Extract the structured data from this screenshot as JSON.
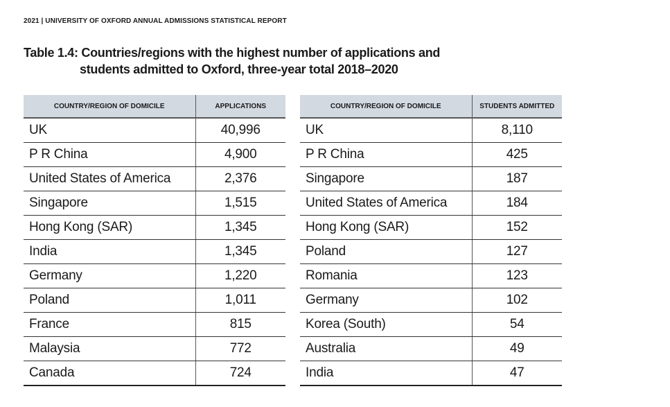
{
  "header": {
    "text": "2021 | UNIVERSITY OF OXFORD ANNUAL ADMISSIONS STATISTICAL REPORT"
  },
  "title": {
    "line1": "Table 1.4: Countries/regions with the highest number of applications and",
    "line2": "students admitted to Oxford, three-year total 2018–2020"
  },
  "applications_table": {
    "col_country": "COUNTRY/REGION OF DOMICILE",
    "col_value": "APPLICATIONS",
    "rows": [
      {
        "country": "UK",
        "value": "40,996"
      },
      {
        "country": "P R China",
        "value": "4,900"
      },
      {
        "country": "United States of America",
        "value": "2,376"
      },
      {
        "country": "Singapore",
        "value": "1,515"
      },
      {
        "country": "Hong Kong (SAR)",
        "value": "1,345"
      },
      {
        "country": "India",
        "value": "1,345"
      },
      {
        "country": "Germany",
        "value": "1,220"
      },
      {
        "country": "Poland",
        "value": "1,011"
      },
      {
        "country": "France",
        "value": "815"
      },
      {
        "country": "Malaysia",
        "value": "772"
      },
      {
        "country": "Canada",
        "value": "724"
      }
    ]
  },
  "admitted_table": {
    "col_country": "COUNTRY/REGION OF DOMICILE",
    "col_value": "STUDENTS ADMITTED",
    "rows": [
      {
        "country": "UK",
        "value": "8,110"
      },
      {
        "country": "P R China",
        "value": "425"
      },
      {
        "country": "Singapore",
        "value": "187"
      },
      {
        "country": "United States of America",
        "value": "184"
      },
      {
        "country": "Hong Kong (SAR)",
        "value": "152"
      },
      {
        "country": "Poland",
        "value": "127"
      },
      {
        "country": "Romania",
        "value": "123"
      },
      {
        "country": "Germany",
        "value": "102"
      },
      {
        "country": "Korea (South)",
        "value": "54"
      },
      {
        "country": "Australia",
        "value": "49"
      },
      {
        "country": "India",
        "value": "47"
      }
    ]
  }
}
